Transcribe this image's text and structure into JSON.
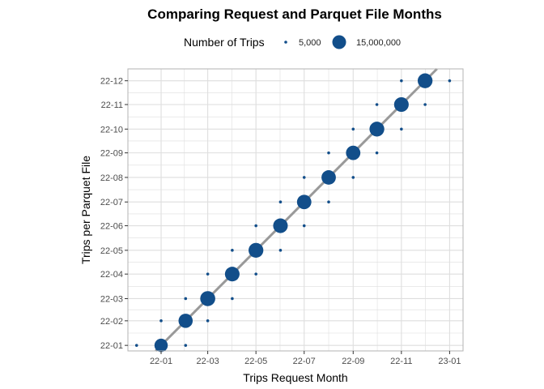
{
  "chart_data": {
    "type": "scatter",
    "title": "Comparing Request and Parquet File Months",
    "xlabel": "Trips Request Month",
    "ylabel": "Trips per Parquet File",
    "x_ticks": [
      "22-01",
      "22-03",
      "22-05",
      "22-07",
      "22-09",
      "22-11",
      "23-01"
    ],
    "y_ticks": [
      "22-01",
      "22-02",
      "22-03",
      "22-04",
      "22-05",
      "22-06",
      "22-07",
      "22-08",
      "22-09",
      "22-10",
      "22-11",
      "22-12"
    ],
    "xlim": [
      "2021-11-20",
      "2023-01-18"
    ],
    "ylim": [
      "2021-12-25",
      "2022-12-16"
    ],
    "grid": true,
    "legend_position": "top",
    "legend": {
      "title": "Number of Trips",
      "entries": [
        {
          "label": "5,000",
          "value": 5000
        },
        {
          "label": "15,000,000",
          "value": 15000000
        }
      ]
    },
    "reference_line": {
      "type": "identity",
      "label": "y = x"
    },
    "colors": {
      "point": "#124e8a",
      "line": "#999999",
      "grid": "#dedede",
      "border": "#b3b3b3"
    },
    "points": [
      {
        "request": "2021-12-01",
        "file": "2022-01-01",
        "trips": 5000
      },
      {
        "request": "2022-01-01",
        "file": "2022-01-01",
        "trips": 14000000
      },
      {
        "request": "2022-01-01",
        "file": "2022-02-01",
        "trips": 5000
      },
      {
        "request": "2022-02-01",
        "file": "2022-01-01",
        "trips": 5000
      },
      {
        "request": "2022-02-01",
        "file": "2022-02-01",
        "trips": 16000000
      },
      {
        "request": "2022-02-01",
        "file": "2022-03-01",
        "trips": 5000
      },
      {
        "request": "2022-03-01",
        "file": "2022-02-01",
        "trips": 5000
      },
      {
        "request": "2022-03-01",
        "file": "2022-03-01",
        "trips": 18000000
      },
      {
        "request": "2022-03-01",
        "file": "2022-04-01",
        "trips": 5000
      },
      {
        "request": "2022-04-01",
        "file": "2022-03-01",
        "trips": 5000
      },
      {
        "request": "2022-04-01",
        "file": "2022-04-01",
        "trips": 17000000
      },
      {
        "request": "2022-04-01",
        "file": "2022-05-01",
        "trips": 5000
      },
      {
        "request": "2022-05-01",
        "file": "2022-04-01",
        "trips": 5000
      },
      {
        "request": "2022-05-01",
        "file": "2022-05-01",
        "trips": 17500000
      },
      {
        "request": "2022-05-01",
        "file": "2022-06-01",
        "trips": 5000
      },
      {
        "request": "2022-06-01",
        "file": "2022-05-01",
        "trips": 5000
      },
      {
        "request": "2022-06-01",
        "file": "2022-06-01",
        "trips": 17000000
      },
      {
        "request": "2022-06-01",
        "file": "2022-07-01",
        "trips": 5000
      },
      {
        "request": "2022-07-01",
        "file": "2022-06-01",
        "trips": 5000
      },
      {
        "request": "2022-07-01",
        "file": "2022-07-01",
        "trips": 16500000
      },
      {
        "request": "2022-07-01",
        "file": "2022-08-01",
        "trips": 5000
      },
      {
        "request": "2022-08-01",
        "file": "2022-07-01",
        "trips": 5000
      },
      {
        "request": "2022-08-01",
        "file": "2022-08-01",
        "trips": 16500000
      },
      {
        "request": "2022-08-01",
        "file": "2022-09-01",
        "trips": 5000
      },
      {
        "request": "2022-09-01",
        "file": "2022-08-01",
        "trips": 5000
      },
      {
        "request": "2022-09-01",
        "file": "2022-09-01",
        "trips": 16500000
      },
      {
        "request": "2022-09-01",
        "file": "2022-10-01",
        "trips": 5000
      },
      {
        "request": "2022-10-01",
        "file": "2022-09-01",
        "trips": 5000
      },
      {
        "request": "2022-10-01",
        "file": "2022-10-01",
        "trips": 17500000
      },
      {
        "request": "2022-10-01",
        "file": "2022-11-01",
        "trips": 5000
      },
      {
        "request": "2022-11-01",
        "file": "2022-10-01",
        "trips": 5000
      },
      {
        "request": "2022-11-01",
        "file": "2022-11-01",
        "trips": 17000000
      },
      {
        "request": "2022-11-01",
        "file": "2022-12-01",
        "trips": 5000
      },
      {
        "request": "2022-12-01",
        "file": "2022-11-01",
        "trips": 5000
      },
      {
        "request": "2022-12-01",
        "file": "2022-12-01",
        "trips": 17500000
      },
      {
        "request": "2023-01-01",
        "file": "2022-12-01",
        "trips": 5000
      }
    ]
  }
}
